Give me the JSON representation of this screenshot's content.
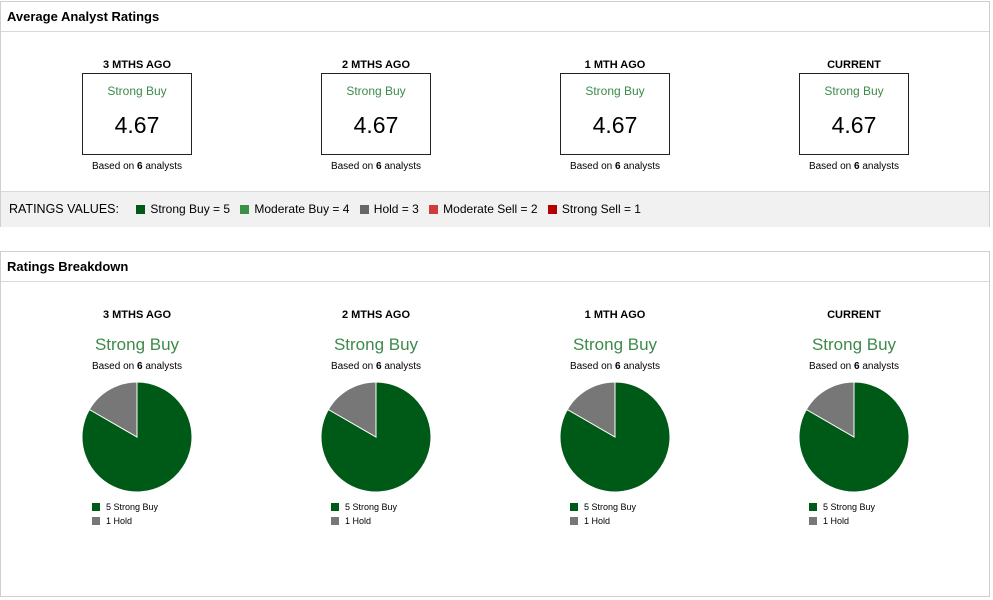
{
  "avg_panel": {
    "title": "Average Analyst Ratings",
    "cards": [
      {
        "period": "3 MTHS AGO",
        "label": "Strong Buy",
        "score": "4.67",
        "based_prefix": "Based on ",
        "count": "6",
        "based_suffix": " analysts"
      },
      {
        "period": "2 MTHS AGO",
        "label": "Strong Buy",
        "score": "4.67",
        "based_prefix": "Based on ",
        "count": "6",
        "based_suffix": " analysts"
      },
      {
        "period": "1 MTH AGO",
        "label": "Strong Buy",
        "score": "4.67",
        "based_prefix": "Based on ",
        "count": "6",
        "based_suffix": " analysts"
      },
      {
        "period": "CURRENT",
        "label": "Strong Buy",
        "score": "4.67",
        "based_prefix": "Based on ",
        "count": "6",
        "based_suffix": " analysts"
      }
    ],
    "ratings_values": {
      "title": "RATINGS VALUES:",
      "items": [
        {
          "label": "Strong Buy = 5",
          "color": "#005a17"
        },
        {
          "label": "Moderate Buy = 4",
          "color": "#3b8f46"
        },
        {
          "label": "Hold = 3",
          "color": "#666666"
        },
        {
          "label": "Moderate Sell = 2",
          "color": "#d23b3b"
        },
        {
          "label": "Strong Sell = 1",
          "color": "#b30000"
        }
      ]
    }
  },
  "breakdown_panel": {
    "title": "Ratings Breakdown",
    "cards": [
      {
        "period": "3 MTHS AGO",
        "label": "Strong Buy",
        "based_prefix": "Based on ",
        "count": "6",
        "based_suffix": " analysts",
        "legend": [
          {
            "text": "5 Strong Buy"
          },
          {
            "text": "1 Hold"
          }
        ]
      },
      {
        "period": "2 MTHS AGO",
        "label": "Strong Buy",
        "based_prefix": "Based on ",
        "count": "6",
        "based_suffix": " analysts",
        "legend": [
          {
            "text": "5 Strong Buy"
          },
          {
            "text": "1 Hold"
          }
        ]
      },
      {
        "period": "1 MTH AGO",
        "label": "Strong Buy",
        "based_prefix": "Based on ",
        "count": "6",
        "based_suffix": " analysts",
        "legend": [
          {
            "text": "5 Strong Buy"
          },
          {
            "text": "1 Hold"
          }
        ]
      },
      {
        "period": "CURRENT",
        "label": "Strong Buy",
        "based_prefix": "Based on ",
        "count": "6",
        "based_suffix": " analysts",
        "legend": [
          {
            "text": "5 Strong Buy"
          },
          {
            "text": "1 Hold"
          }
        ]
      }
    ]
  },
  "colors": {
    "strong_buy": "#005a17",
    "hold": "#777777",
    "label_green": "#3d8a4a"
  },
  "chart_data": [
    {
      "type": "pie",
      "categories": [
        "Strong Buy",
        "Hold"
      ],
      "values": [
        5,
        1
      ],
      "colors": [
        "#005a17",
        "#777777"
      ]
    },
    {
      "type": "pie",
      "categories": [
        "Strong Buy",
        "Hold"
      ],
      "values": [
        5,
        1
      ],
      "colors": [
        "#005a17",
        "#777777"
      ]
    },
    {
      "type": "pie",
      "categories": [
        "Strong Buy",
        "Hold"
      ],
      "values": [
        5,
        1
      ],
      "colors": [
        "#005a17",
        "#777777"
      ]
    },
    {
      "type": "pie",
      "categories": [
        "Strong Buy",
        "Hold"
      ],
      "values": [
        5,
        1
      ],
      "colors": [
        "#005a17",
        "#777777"
      ]
    }
  ]
}
